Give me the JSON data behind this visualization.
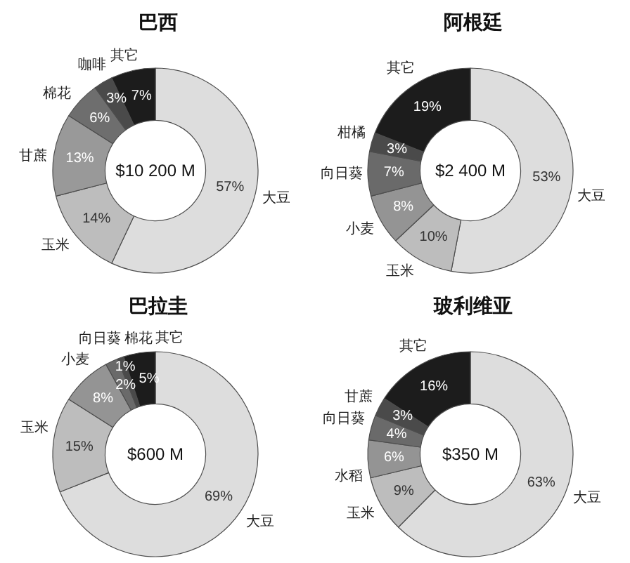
{
  "chart_data": [
    {
      "type": "donut",
      "title": "巴西",
      "categories": [
        "大豆",
        "玉米",
        "甘蔗",
        "棉花",
        "咖啡",
        "其它"
      ],
      "values": [
        57,
        14,
        13,
        6,
        3,
        7
      ],
      "colors": [
        "#dddddd",
        "#bdbdbd",
        "#999999",
        "#6e6e6e",
        "#4a4a4a",
        "#1c1c1c"
      ],
      "value_labels": [
        "57%",
        "14%",
        "13%",
        "6%",
        "3%",
        "7%"
      ],
      "annotations": [
        "$10 200 M"
      ]
    },
    {
      "type": "donut",
      "title": "阿根廷",
      "categories": [
        "大豆",
        "玉米",
        "小麦",
        "向日葵",
        "柑橘",
        "其它"
      ],
      "values": [
        53,
        10,
        8,
        7,
        3,
        19
      ],
      "colors": [
        "#dddddd",
        "#bdbdbd",
        "#949494",
        "#6a6a6a",
        "#4a4a4a",
        "#1c1c1c"
      ],
      "value_labels": [
        "53%",
        "10%",
        "8%",
        "7%",
        "3%",
        "19%"
      ],
      "annotations": [
        "$2 400 M"
      ]
    },
    {
      "type": "donut",
      "title": "巴拉圭",
      "categories": [
        "大豆",
        "玉米",
        "小麦",
        "向日葵",
        "棉花",
        "其它"
      ],
      "values": [
        69,
        15,
        8,
        2,
        1,
        5
      ],
      "colors": [
        "#dddddd",
        "#bdbdbd",
        "#949494",
        "#6a6a6a",
        "#4a4a4a",
        "#1c1c1c"
      ],
      "value_labels": [
        "69%",
        "15%",
        "8%",
        "2%",
        "1%",
        "5%"
      ],
      "annotations": [
        "$600 M"
      ]
    },
    {
      "type": "donut",
      "title": "玻利维亚",
      "categories": [
        "大豆",
        "玉米",
        "水稻",
        "向日葵",
        "甘蔗",
        "其它"
      ],
      "values": [
        63,
        9,
        6,
        4,
        3,
        16
      ],
      "colors": [
        "#dddddd",
        "#bdbdbd",
        "#949494",
        "#6a6a6a",
        "#4a4a4a",
        "#1c1c1c"
      ],
      "value_labels": [
        "63%",
        "9%",
        "6%",
        "4%",
        "3%",
        "16%"
      ],
      "annotations": [
        "$350 M"
      ]
    }
  ]
}
